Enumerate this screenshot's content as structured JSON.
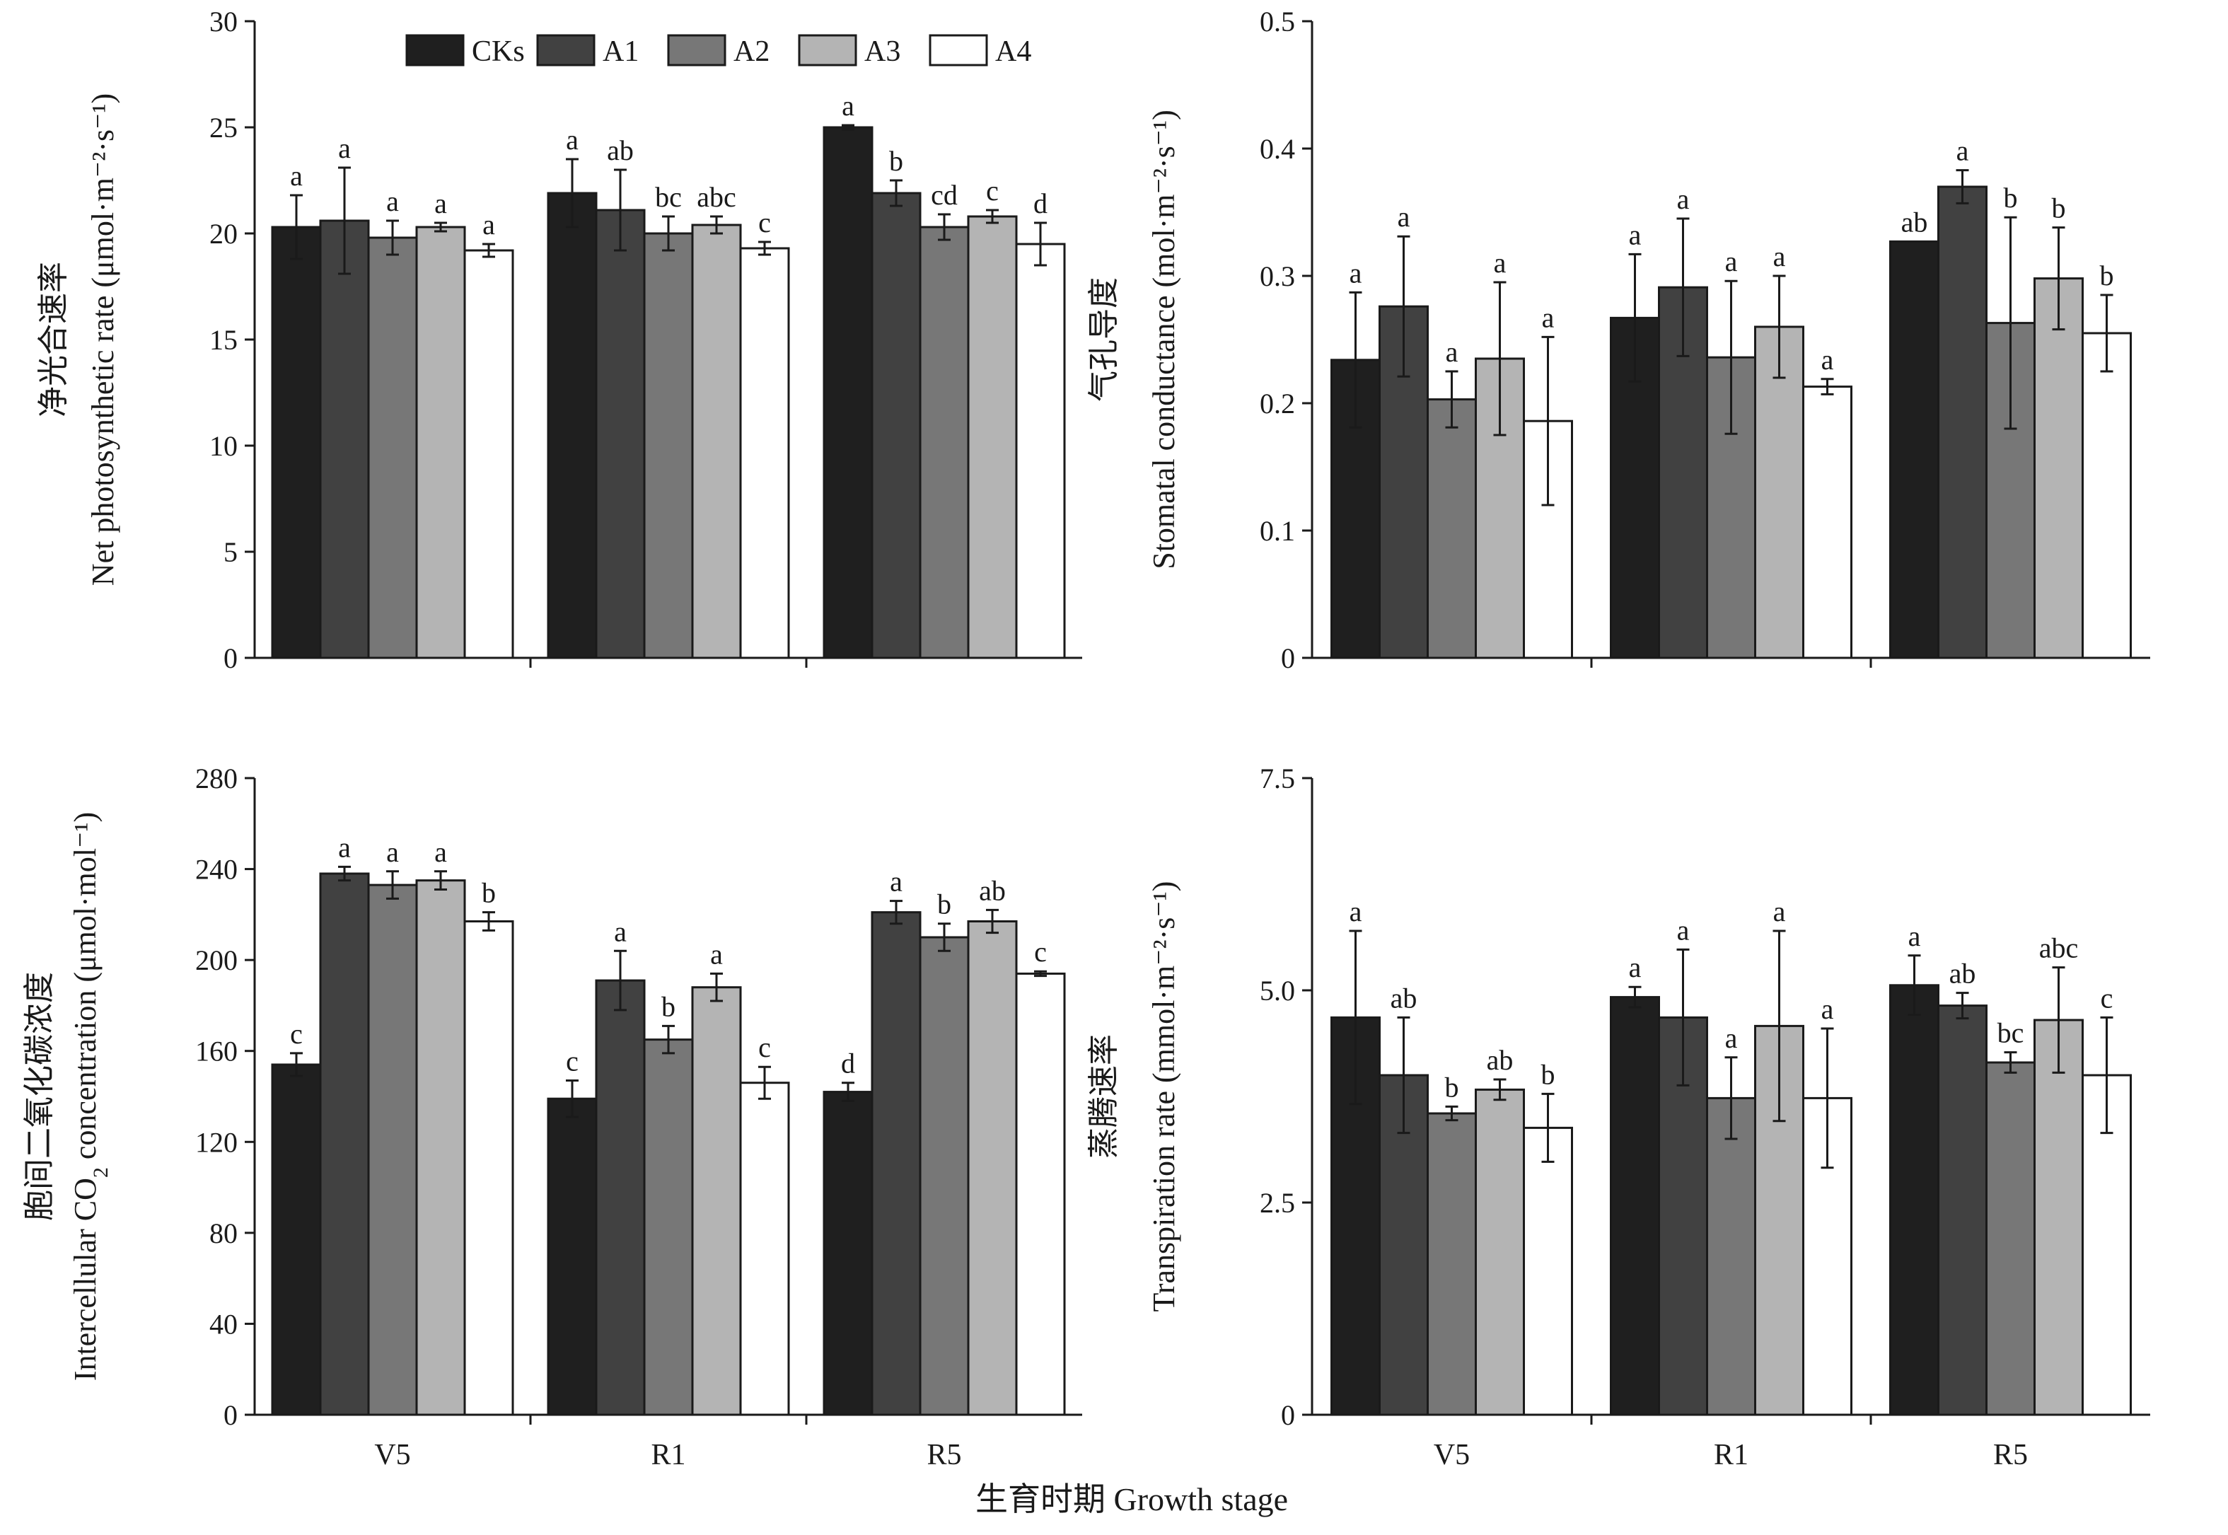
{
  "colors": {
    "CKs": "#1f1f1f",
    "A1": "#414141",
    "A2": "#777777",
    "A3": "#b4b4b4",
    "A4": "#ffffff"
  },
  "legend": [
    "CKs",
    "A1",
    "A2",
    "A3",
    "A4"
  ],
  "shared_xlabel": "生育时期 Growth stage",
  "chart_data": [
    {
      "type": "bar",
      "id": "pn",
      "ylabel_cn": "净光合速率",
      "ylabel_en": "Net photosynthetic rate (μmol·m⁻²·s⁻¹)",
      "categories": [
        "V5",
        "R1",
        "R5"
      ],
      "ylim": [
        0,
        30
      ],
      "yticks": [
        "0",
        "5",
        "10",
        "15",
        "20",
        "25",
        "30"
      ],
      "series": [
        {
          "name": "CKs",
          "values": [
            20.3,
            21.9,
            25.0
          ],
          "err": [
            1.5,
            1.6,
            0.1
          ],
          "letters": [
            "a",
            "a",
            "a"
          ]
        },
        {
          "name": "A1",
          "values": [
            20.6,
            21.1,
            21.9
          ],
          "err": [
            2.5,
            1.9,
            0.6
          ],
          "letters": [
            "a",
            "ab",
            "b"
          ]
        },
        {
          "name": "A2",
          "values": [
            19.8,
            20.0,
            20.3
          ],
          "err": [
            0.8,
            0.8,
            0.6
          ],
          "letters": [
            "a",
            "bc",
            "cd"
          ]
        },
        {
          "name": "A3",
          "values": [
            20.3,
            20.4,
            20.8
          ],
          "err": [
            0.2,
            0.4,
            0.3
          ],
          "letters": [
            "a",
            "abc",
            "c"
          ]
        },
        {
          "name": "A4",
          "values": [
            19.2,
            19.3,
            19.5
          ],
          "err": [
            0.3,
            0.3,
            1.0
          ],
          "letters": [
            "a",
            "c",
            "d"
          ]
        }
      ]
    },
    {
      "type": "bar",
      "id": "gs",
      "ylabel_cn": "气孔导度",
      "ylabel_en": "Stomatal conductance (mol·m⁻²·s⁻¹)",
      "categories": [
        "V5",
        "R1",
        "R5"
      ],
      "ylim": [
        0,
        0.5
      ],
      "yticks": [
        "0",
        "0.1",
        "0.2",
        "0.3",
        "0.4",
        "0.5"
      ],
      "series": [
        {
          "name": "CKs",
          "values": [
            0.234,
            0.267,
            0.327
          ],
          "err": [
            0.053,
            0.05,
            0.0
          ],
          "letters": [
            "a",
            "a",
            "ab"
          ]
        },
        {
          "name": "A1",
          "values": [
            0.276,
            0.291,
            0.37
          ],
          "err": [
            0.055,
            0.054,
            0.013
          ],
          "letters": [
            "a",
            "a",
            "a"
          ]
        },
        {
          "name": "A2",
          "values": [
            0.203,
            0.236,
            0.263
          ],
          "err": [
            0.022,
            0.06,
            0.083
          ],
          "letters": [
            "a",
            "a",
            "b"
          ]
        },
        {
          "name": "A3",
          "values": [
            0.235,
            0.26,
            0.298
          ],
          "err": [
            0.06,
            0.04,
            0.04
          ],
          "letters": [
            "a",
            "a",
            "b"
          ]
        },
        {
          "name": "A4",
          "values": [
            0.186,
            0.213,
            0.255
          ],
          "err": [
            0.066,
            0.006,
            0.03
          ],
          "letters": [
            "a",
            "a",
            "b"
          ]
        }
      ]
    },
    {
      "type": "bar",
      "id": "ci",
      "ylabel_cn": "胞间二氧化碳浓度",
      "ylabel_en_pre": "Intercellular CO",
      "ylabel_en_sub": "2",
      "ylabel_en_post": " concentration (μmol·mol⁻¹)",
      "categories": [
        "V5",
        "R1",
        "R5"
      ],
      "ylim": [
        0,
        280
      ],
      "yticks": [
        "0",
        "40",
        "80",
        "120",
        "160",
        "200",
        "240",
        "280"
      ],
      "series": [
        {
          "name": "CKs",
          "values": [
            154,
            139,
            142
          ],
          "err": [
            5,
            8,
            4
          ],
          "letters": [
            "c",
            "c",
            "d"
          ]
        },
        {
          "name": "A1",
          "values": [
            238,
            191,
            221
          ],
          "err": [
            3,
            13,
            5
          ],
          "letters": [
            "a",
            "a",
            "a"
          ]
        },
        {
          "name": "A2",
          "values": [
            233,
            165,
            210
          ],
          "err": [
            6,
            6,
            6
          ],
          "letters": [
            "a",
            "b",
            "b"
          ]
        },
        {
          "name": "A3",
          "values": [
            235,
            188,
            217
          ],
          "err": [
            4,
            6,
            5
          ],
          "letters": [
            "a",
            "a",
            "ab"
          ]
        },
        {
          "name": "A4",
          "values": [
            217,
            146,
            194
          ],
          "err": [
            4,
            7,
            1
          ],
          "letters": [
            "b",
            "c",
            "c"
          ]
        }
      ]
    },
    {
      "type": "bar",
      "id": "tr",
      "ylabel_cn": "蒸腾速率",
      "ylabel_en": "Transpiration rate (mmol·m⁻²·s⁻¹)",
      "categories": [
        "V5",
        "R1",
        "R5"
      ],
      "ylim": [
        0,
        7.5
      ],
      "yticks": [
        "0",
        "2.5",
        "5.0",
        "7.5"
      ],
      "series": [
        {
          "name": "CKs",
          "values": [
            4.68,
            4.92,
            5.06
          ],
          "err": [
            1.02,
            0.12,
            0.35
          ],
          "letters": [
            "a",
            "a",
            "a"
          ]
        },
        {
          "name": "A1",
          "values": [
            4.0,
            4.68,
            4.82
          ],
          "err": [
            0.68,
            0.8,
            0.15
          ],
          "letters": [
            "ab",
            "a",
            "ab"
          ]
        },
        {
          "name": "A2",
          "values": [
            3.55,
            3.73,
            4.15
          ],
          "err": [
            0.08,
            0.48,
            0.12
          ],
          "letters": [
            "b",
            "a",
            "bc"
          ]
        },
        {
          "name": "A3",
          "values": [
            3.83,
            4.58,
            4.65
          ],
          "err": [
            0.12,
            1.12,
            0.62
          ],
          "letters": [
            "ab",
            "a",
            "abc"
          ]
        },
        {
          "name": "A4",
          "values": [
            3.38,
            3.73,
            4.0
          ],
          "err": [
            0.4,
            0.82,
            0.68
          ],
          "letters": [
            "b",
            "a",
            "c"
          ]
        }
      ]
    }
  ]
}
